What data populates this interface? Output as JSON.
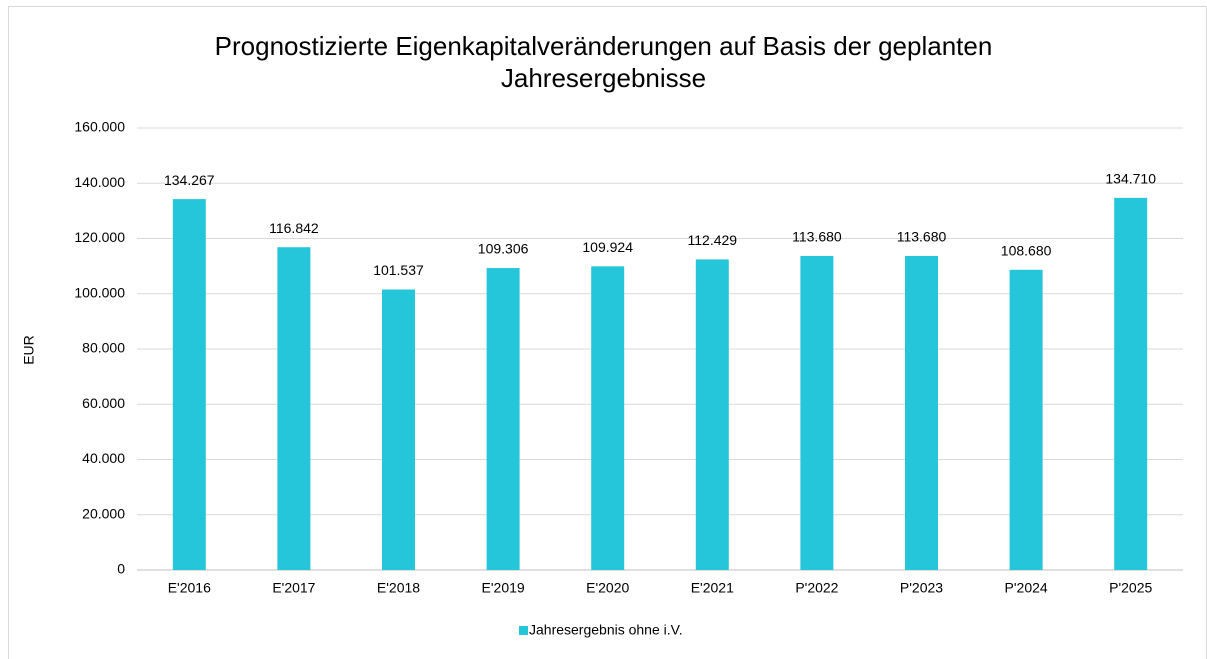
{
  "chart_data": {
    "type": "bar",
    "title": "Prognostizierte Eigenkapitalveränderungen auf Basis der geplanten Jahresergebnisse",
    "y_label": "EUR",
    "categories": [
      "E'2016",
      "E'2017",
      "E'2018",
      "E'2019",
      "E'2020",
      "E'2021",
      "P'2022",
      "P'2023",
      "P'2024",
      "P'2025"
    ],
    "series": [
      {
        "name": "Jahresergebnis ohne i.V.",
        "color": "#26c6da",
        "values": [
          134267,
          116842,
          101537,
          109306,
          109924,
          112429,
          113680,
          113680,
          108680,
          134710
        ],
        "value_labels": [
          "134.267",
          "116.842",
          "101.537",
          "109.306",
          "109.924",
          "112.429",
          "113.680",
          "113.680",
          "108.680",
          "134.710"
        ]
      }
    ],
    "ylim": [
      0,
      160000
    ],
    "yticks": [
      0,
      {
        "value": 20000,
        "label": "20.000"
      },
      {
        "value": 40000,
        "label": "40.000"
      },
      {
        "value": 60000,
        "label": "60.000"
      },
      {
        "value": 80000,
        "label": "80.000"
      },
      {
        "value": 100000,
        "label": "100.000"
      },
      {
        "value": 120000,
        "label": "120.000"
      },
      {
        "value": 140000,
        "label": "140.000"
      },
      {
        "value": 160000,
        "label": "160.000"
      }
    ],
    "grid": true,
    "legend": "bottom"
  }
}
